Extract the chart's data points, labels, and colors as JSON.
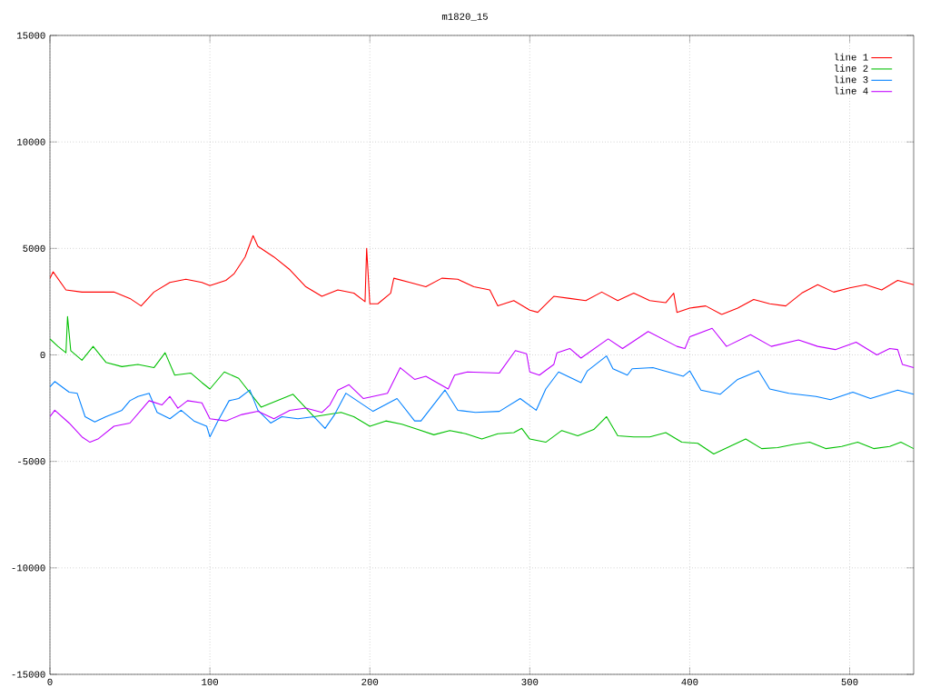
{
  "chart_data": {
    "type": "line",
    "title": "m1820_15",
    "xlim": [
      0,
      540
    ],
    "ylim": [
      -15000,
      15000
    ],
    "xticks": [
      0,
      100,
      200,
      300,
      400,
      500
    ],
    "yticks": [
      -15000,
      -10000,
      -5000,
      0,
      5000,
      10000,
      15000
    ],
    "grid": true,
    "legend": "top right",
    "marker": "none",
    "line_style": "solid",
    "series": [
      {
        "name": "line 1",
        "color": "#ff0000",
        "x": [
          0,
          2,
          10,
          20,
          30,
          40,
          50,
          57,
          65,
          75,
          85,
          95,
          100,
          110,
          115,
          122,
          127,
          130,
          140,
          150,
          160,
          170,
          180,
          190,
          197,
          198,
          200,
          205,
          213,
          215,
          225,
          235,
          245,
          255,
          265,
          275,
          280,
          290,
          300,
          305,
          315,
          325,
          335,
          345,
          355,
          365,
          375,
          385,
          390,
          392,
          400,
          410,
          420,
          430,
          440,
          450,
          460,
          470,
          480,
          490,
          500,
          510,
          520,
          530,
          540
        ],
        "values": [
          3600,
          3900,
          3050,
          2950,
          2950,
          2950,
          2650,
          2300,
          2950,
          3400,
          3550,
          3400,
          3250,
          3500,
          3800,
          4600,
          5600,
          5100,
          4600,
          4000,
          3200,
          2750,
          3050,
          2900,
          2500,
          5000,
          2400,
          2400,
          2900,
          3600,
          3400,
          3200,
          3600,
          3550,
          3200,
          3050,
          2300,
          2550,
          2100,
          2000,
          2750,
          2650,
          2550,
          2950,
          2550,
          2900,
          2550,
          2450,
          2900,
          2000,
          2200,
          2300,
          1900,
          2200,
          2600,
          2400,
          2300,
          2900,
          3300,
          2950,
          3150,
          3300,
          3050,
          3500,
          3300
        ]
      },
      {
        "name": "line 2",
        "color": "#00c000",
        "x": [
          0,
          5,
          10,
          11,
          13,
          20,
          27,
          35,
          45,
          55,
          65,
          72,
          78,
          88,
          95,
          100,
          109,
          118,
          132,
          152,
          165,
          182,
          190,
          200,
          210,
          220,
          230,
          240,
          250,
          260,
          270,
          280,
          290,
          295,
          300,
          310,
          320,
          330,
          340,
          348,
          355,
          365,
          375,
          385,
          395,
          405,
          415,
          425,
          435,
          445,
          455,
          465,
          475,
          485,
          495,
          505,
          515,
          525,
          532,
          540
        ],
        "values": [
          750,
          400,
          100,
          1800,
          200,
          -250,
          400,
          -350,
          -550,
          -450,
          -600,
          100,
          -950,
          -850,
          -1300,
          -1600,
          -800,
          -1100,
          -2450,
          -1850,
          -2900,
          -2700,
          -2900,
          -3350,
          -3100,
          -3250,
          -3500,
          -3750,
          -3550,
          -3700,
          -3950,
          -3700,
          -3650,
          -3450,
          -3950,
          -4100,
          -3550,
          -3800,
          -3500,
          -2900,
          -3800,
          -3850,
          -3850,
          -3650,
          -4100,
          -4150,
          -4650,
          -4300,
          -3950,
          -4400,
          -4350,
          -4200,
          -4100,
          -4400,
          -4300,
          -4100,
          -4400,
          -4300,
          -4100,
          -4400
        ]
      },
      {
        "name": "line 3",
        "color": "#0080ff",
        "x": [
          0,
          3,
          12,
          17,
          22,
          28,
          35,
          45,
          50,
          55,
          62,
          67,
          75,
          82,
          90,
          98,
          100,
          105,
          112,
          118,
          125,
          130,
          138,
          145,
          155,
          165,
          172,
          178,
          185,
          202,
          217,
          228,
          232,
          247,
          255,
          266,
          281,
          294,
          304,
          310,
          318,
          332,
          336,
          348,
          352,
          361,
          364,
          377,
          396,
          400,
          407,
          419,
          430,
          443,
          450,
          462,
          479,
          488,
          502,
          513,
          530,
          540
        ],
        "values": [
          -1500,
          -1250,
          -1750,
          -1800,
          -2900,
          -3150,
          -2900,
          -2600,
          -2150,
          -1950,
          -1800,
          -2700,
          -3000,
          -2600,
          -3100,
          -3350,
          -3850,
          -3100,
          -2150,
          -2050,
          -1650,
          -2600,
          -3200,
          -2900,
          -3000,
          -2900,
          -3450,
          -2800,
          -1800,
          -2650,
          -2050,
          -3100,
          -3100,
          -1650,
          -2600,
          -2700,
          -2650,
          -2050,
          -2600,
          -1600,
          -800,
          -1300,
          -750,
          -50,
          -650,
          -950,
          -650,
          -600,
          -1000,
          -750,
          -1650,
          -1850,
          -1150,
          -750,
          -1600,
          -1800,
          -1950,
          -2100,
          -1750,
          -2050,
          -1650,
          -1850
        ]
      },
      {
        "name": "line 4",
        "color": "#c000ff",
        "x": [
          0,
          3,
          12,
          20,
          25,
          30,
          40,
          50,
          58,
          62,
          70,
          75,
          80,
          86,
          95,
          100,
          110,
          120,
          130,
          140,
          150,
          160,
          170,
          175,
          180,
          187,
          196,
          211,
          219,
          228,
          235,
          249,
          253,
          261,
          281,
          291,
          298,
          300,
          306,
          315,
          317,
          325,
          332,
          349,
          358,
          374,
          392,
          397,
          400,
          414,
          423,
          438,
          451,
          468,
          480,
          491,
          504,
          517,
          525,
          530,
          533,
          540
        ],
        "values": [
          -2900,
          -2600,
          -3200,
          -3850,
          -4100,
          -3950,
          -3350,
          -3200,
          -2500,
          -2150,
          -2350,
          -1950,
          -2500,
          -2150,
          -2250,
          -3000,
          -3100,
          -2800,
          -2650,
          -3000,
          -2600,
          -2500,
          -2700,
          -2350,
          -1650,
          -1400,
          -2050,
          -1800,
          -600,
          -1150,
          -1000,
          -1600,
          -950,
          -800,
          -850,
          200,
          50,
          -800,
          -950,
          -450,
          100,
          300,
          -150,
          750,
          300,
          1100,
          400,
          300,
          850,
          1250,
          400,
          950,
          400,
          700,
          400,
          250,
          600,
          0,
          300,
          250,
          -450,
          -600
        ]
      }
    ]
  }
}
